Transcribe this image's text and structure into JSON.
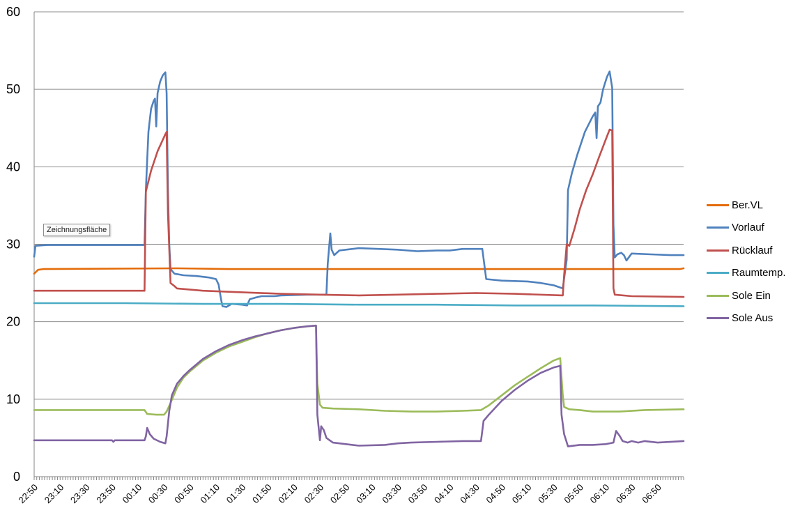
{
  "tooltip": "Zeichnungsfläche",
  "chart_data": {
    "type": "line",
    "title": "",
    "xlabel": "",
    "ylabel": "",
    "ylim": [
      0,
      60
    ],
    "yticks": [
      0,
      10,
      20,
      30,
      40,
      50,
      60
    ],
    "grid": true,
    "legend_position": "right",
    "x_range": [
      "22:50",
      "07:10"
    ],
    "x_tick_labels": [
      "22:50",
      "23:10",
      "23:30",
      "23:50",
      "00:10",
      "00:30",
      "00:50",
      "01:10",
      "01:30",
      "01:50",
      "02:10",
      "02:30",
      "02:50",
      "03:10",
      "03:30",
      "03:50",
      "04:10",
      "04:30",
      "04:50",
      "05:10",
      "05:30",
      "05:50",
      "06:10",
      "06:30",
      "06:50"
    ],
    "series": [
      {
        "name": "Ber.VL",
        "color": "#E46C0A",
        "points": [
          [
            "22:50",
            26.2
          ],
          [
            "22:53",
            26.7
          ],
          [
            "22:57",
            26.8
          ],
          [
            "00:40",
            26.9
          ],
          [
            "01:20",
            26.8
          ],
          [
            "03:00",
            26.8
          ],
          [
            "05:30",
            26.8
          ],
          [
            "07:07",
            26.8
          ],
          [
            "07:10",
            26.9
          ]
        ]
      },
      {
        "name": "Vorlauf",
        "color": "#4F81BD",
        "points": [
          [
            "22:50",
            28.4
          ],
          [
            "22:51",
            29.8
          ],
          [
            "23:00",
            29.9
          ],
          [
            "00:15",
            29.9
          ],
          [
            "00:16",
            37.0
          ],
          [
            "00:18",
            44.5
          ],
          [
            "00:20",
            47.5
          ],
          [
            "00:22",
            48.5
          ],
          [
            "00:23",
            48.8
          ],
          [
            "00:24",
            45.2
          ],
          [
            "00:25",
            49.5
          ],
          [
            "00:27",
            51.0
          ],
          [
            "00:29",
            51.8
          ],
          [
            "00:31",
            52.2
          ],
          [
            "00:32",
            49.5
          ],
          [
            "00:33",
            37.0
          ],
          [
            "00:34",
            30.0
          ],
          [
            "00:35",
            26.8
          ],
          [
            "00:38",
            26.2
          ],
          [
            "00:45",
            26.0
          ],
          [
            "00:55",
            25.9
          ],
          [
            "01:05",
            25.7
          ],
          [
            "01:10",
            25.5
          ],
          [
            "01:12",
            24.8
          ],
          [
            "01:14",
            22.8
          ],
          [
            "01:15",
            22.0
          ],
          [
            "01:18",
            21.9
          ],
          [
            "01:22",
            22.3
          ],
          [
            "01:30",
            22.2
          ],
          [
            "01:34",
            22.1
          ],
          [
            "01:36",
            22.9
          ],
          [
            "01:40",
            23.1
          ],
          [
            "01:45",
            23.3
          ],
          [
            "01:55",
            23.3
          ],
          [
            "02:00",
            23.4
          ],
          [
            "02:20",
            23.5
          ],
          [
            "02:35",
            23.5
          ],
          [
            "02:36",
            27.5
          ],
          [
            "02:38",
            31.4
          ],
          [
            "02:39",
            29.3
          ],
          [
            "02:41",
            28.6
          ],
          [
            "02:45",
            29.2
          ],
          [
            "03:00",
            29.5
          ],
          [
            "03:30",
            29.3
          ],
          [
            "03:45",
            29.1
          ],
          [
            "04:00",
            29.2
          ],
          [
            "04:10",
            29.2
          ],
          [
            "04:20",
            29.4
          ],
          [
            "04:35",
            29.4
          ],
          [
            "04:38",
            25.5
          ],
          [
            "04:50",
            25.3
          ],
          [
            "05:10",
            25.2
          ],
          [
            "05:20",
            25.0
          ],
          [
            "05:30",
            24.7
          ],
          [
            "05:37",
            24.3
          ],
          [
            "05:40",
            28.0
          ],
          [
            "05:41",
            37.0
          ],
          [
            "05:44",
            39.2
          ],
          [
            "05:48",
            41.5
          ],
          [
            "05:54",
            44.5
          ],
          [
            "06:00",
            46.5
          ],
          [
            "06:02",
            47.0
          ],
          [
            "06:03",
            43.7
          ],
          [
            "06:04",
            47.8
          ],
          [
            "06:06",
            48.3
          ],
          [
            "06:08",
            50.0
          ],
          [
            "06:11",
            51.6
          ],
          [
            "06:13",
            52.3
          ],
          [
            "06:15",
            50.2
          ],
          [
            "06:16",
            32.5
          ],
          [
            "06:17",
            28.3
          ],
          [
            "06:19",
            28.7
          ],
          [
            "06:22",
            28.9
          ],
          [
            "06:24",
            28.6
          ],
          [
            "06:26",
            27.9
          ],
          [
            "06:30",
            28.8
          ],
          [
            "06:45",
            28.7
          ],
          [
            "07:00",
            28.6
          ],
          [
            "07:10",
            28.6
          ]
        ]
      },
      {
        "name": "Rücklauf",
        "color": "#C0504D",
        "points": [
          [
            "22:50",
            24.0
          ],
          [
            "00:15",
            24.0
          ],
          [
            "00:16",
            36.8
          ],
          [
            "00:20",
            39.5
          ],
          [
            "00:25",
            42.0
          ],
          [
            "00:31",
            44.2
          ],
          [
            "00:32",
            44.5
          ],
          [
            "00:33",
            34.0
          ],
          [
            "00:35",
            25.0
          ],
          [
            "00:38",
            24.6
          ],
          [
            "00:40",
            24.3
          ],
          [
            "01:00",
            24.0
          ],
          [
            "01:30",
            23.8
          ],
          [
            "02:00",
            23.6
          ],
          [
            "02:30",
            23.5
          ],
          [
            "03:00",
            23.4
          ],
          [
            "03:30",
            23.5
          ],
          [
            "04:00",
            23.6
          ],
          [
            "04:30",
            23.7
          ],
          [
            "05:00",
            23.6
          ],
          [
            "05:37",
            23.4
          ],
          [
            "05:38",
            26.0
          ],
          [
            "05:40",
            30.0
          ],
          [
            "05:42",
            29.8
          ],
          [
            "05:46",
            32.0
          ],
          [
            "05:50",
            34.5
          ],
          [
            "05:55",
            37.0
          ],
          [
            "06:00",
            39.0
          ],
          [
            "06:05",
            41.3
          ],
          [
            "06:10",
            43.5
          ],
          [
            "06:13",
            44.8
          ],
          [
            "06:15",
            44.7
          ],
          [
            "06:16",
            24.3
          ],
          [
            "06:17",
            23.5
          ],
          [
            "06:30",
            23.3
          ],
          [
            "07:10",
            23.2
          ]
        ]
      },
      {
        "name": "Raumtemp.",
        "color": "#4BACC6",
        "points": [
          [
            "22:50",
            22.4
          ],
          [
            "00:00",
            22.4
          ],
          [
            "01:00",
            22.3
          ],
          [
            "02:00",
            22.3
          ],
          [
            "03:00",
            22.2
          ],
          [
            "04:00",
            22.2
          ],
          [
            "05:00",
            22.1
          ],
          [
            "06:00",
            22.1
          ],
          [
            "07:10",
            22.0
          ]
        ]
      },
      {
        "name": "Sole Ein",
        "color": "#9BBB59",
        "points": [
          [
            "22:50",
            8.6
          ],
          [
            "00:15",
            8.6
          ],
          [
            "00:17",
            8.1
          ],
          [
            "00:24",
            8.0
          ],
          [
            "00:30",
            8.0
          ],
          [
            "00:32",
            8.4
          ],
          [
            "00:35",
            9.5
          ],
          [
            "00:40",
            11.5
          ],
          [
            "00:45",
            12.8
          ],
          [
            "00:50",
            13.6
          ],
          [
            "01:00",
            15.0
          ],
          [
            "01:10",
            16.0
          ],
          [
            "01:20",
            16.8
          ],
          [
            "01:30",
            17.4
          ],
          [
            "01:40",
            18.0
          ],
          [
            "01:50",
            18.5
          ],
          [
            "02:00",
            18.9
          ],
          [
            "02:10",
            19.2
          ],
          [
            "02:20",
            19.4
          ],
          [
            "02:27",
            19.5
          ],
          [
            "02:28",
            12.0
          ],
          [
            "02:30",
            9.3
          ],
          [
            "02:32",
            8.9
          ],
          [
            "02:40",
            8.8
          ],
          [
            "03:00",
            8.7
          ],
          [
            "03:20",
            8.5
          ],
          [
            "03:40",
            8.4
          ],
          [
            "04:00",
            8.4
          ],
          [
            "04:20",
            8.5
          ],
          [
            "04:34",
            8.6
          ],
          [
            "04:40",
            9.2
          ],
          [
            "04:50",
            10.5
          ],
          [
            "05:00",
            11.8
          ],
          [
            "05:10",
            12.9
          ],
          [
            "05:20",
            14.0
          ],
          [
            "05:30",
            15.0
          ],
          [
            "05:35",
            15.3
          ],
          [
            "05:37",
            10.5
          ],
          [
            "05:38",
            9.0
          ],
          [
            "05:42",
            8.7
          ],
          [
            "05:50",
            8.6
          ],
          [
            "06:00",
            8.4
          ],
          [
            "06:20",
            8.4
          ],
          [
            "06:40",
            8.6
          ],
          [
            "07:10",
            8.7
          ]
        ]
      },
      {
        "name": "Sole Aus",
        "color": "#8064A2",
        "points": [
          [
            "22:50",
            4.7
          ],
          [
            "23:50",
            4.7
          ],
          [
            "23:51",
            4.5
          ],
          [
            "23:52",
            4.7
          ],
          [
            "00:15",
            4.7
          ],
          [
            "00:16",
            5.2
          ],
          [
            "00:17",
            6.3
          ],
          [
            "00:19",
            5.5
          ],
          [
            "00:22",
            4.9
          ],
          [
            "00:27",
            4.5
          ],
          [
            "00:31",
            4.3
          ],
          [
            "00:32",
            5.2
          ],
          [
            "00:34",
            8.5
          ],
          [
            "00:36",
            10.5
          ],
          [
            "00:40",
            12.0
          ],
          [
            "00:45",
            13.0
          ],
          [
            "00:50",
            13.8
          ],
          [
            "01:00",
            15.2
          ],
          [
            "01:10",
            16.2
          ],
          [
            "01:20",
            17.0
          ],
          [
            "01:30",
            17.6
          ],
          [
            "01:40",
            18.1
          ],
          [
            "01:50",
            18.5
          ],
          [
            "02:00",
            18.9
          ],
          [
            "02:10",
            19.2
          ],
          [
            "02:20",
            19.4
          ],
          [
            "02:27",
            19.5
          ],
          [
            "02:28",
            8.0
          ],
          [
            "02:30",
            4.7
          ],
          [
            "02:31",
            6.5
          ],
          [
            "02:33",
            6.0
          ],
          [
            "02:35",
            5.0
          ],
          [
            "02:40",
            4.4
          ],
          [
            "02:50",
            4.2
          ],
          [
            "03:00",
            4.0
          ],
          [
            "03:20",
            4.1
          ],
          [
            "03:30",
            4.3
          ],
          [
            "03:40",
            4.4
          ],
          [
            "04:00",
            4.5
          ],
          [
            "04:20",
            4.6
          ],
          [
            "04:34",
            4.6
          ],
          [
            "04:36",
            7.2
          ],
          [
            "04:40",
            8.0
          ],
          [
            "04:50",
            9.8
          ],
          [
            "05:00",
            11.2
          ],
          [
            "05:10",
            12.4
          ],
          [
            "05:20",
            13.4
          ],
          [
            "05:30",
            14.1
          ],
          [
            "05:35",
            14.3
          ],
          [
            "05:36",
            8.0
          ],
          [
            "05:38",
            5.5
          ],
          [
            "05:41",
            3.9
          ],
          [
            "05:50",
            4.1
          ],
          [
            "06:00",
            4.1
          ],
          [
            "06:10",
            4.2
          ],
          [
            "06:16",
            4.4
          ],
          [
            "06:18",
            5.9
          ],
          [
            "06:21",
            5.2
          ],
          [
            "06:23",
            4.6
          ],
          [
            "06:27",
            4.4
          ],
          [
            "06:30",
            4.6
          ],
          [
            "06:35",
            4.4
          ],
          [
            "06:40",
            4.6
          ],
          [
            "06:50",
            4.4
          ],
          [
            "07:10",
            4.6
          ]
        ]
      }
    ]
  }
}
